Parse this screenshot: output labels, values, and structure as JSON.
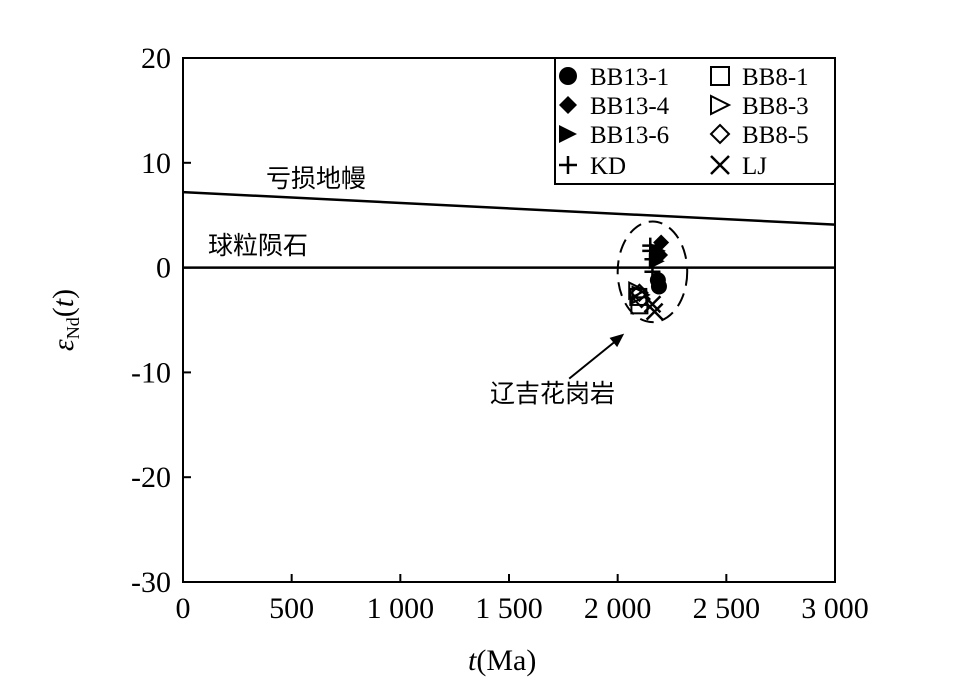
{
  "chart_data": {
    "type": "scatter",
    "xlabel": "t(Ma)",
    "ylabel": "εNd(t)",
    "xlim": [
      0,
      3000
    ],
    "ylim": [
      -30,
      20
    ],
    "x_ticks": [
      0,
      500,
      1000,
      1500,
      2000,
      2500,
      3000
    ],
    "x_tick_labels": [
      "0",
      "500",
      "1 000",
      "1 500",
      "2 000",
      "2 500",
      "3 000"
    ],
    "y_ticks": [
      -30,
      -20,
      -10,
      0,
      10,
      20
    ],
    "y_tick_labels": [
      "-30",
      "-20",
      "-10",
      "0",
      "10",
      "20"
    ],
    "grid": false,
    "legend_position": "top-right",
    "reference_lines": [
      {
        "label": "亏损地幔",
        "x": [
          0,
          3000
        ],
        "y": [
          7.2,
          4.1
        ]
      },
      {
        "label": "球粒陨石",
        "x": [
          0,
          3000
        ],
        "y": [
          0,
          0
        ]
      }
    ],
    "series": [
      {
        "name": "BB13-1",
        "marker": "circle-filled",
        "points": [
          [
            2190,
            -1.8
          ],
          [
            2185,
            -1.2
          ]
        ]
      },
      {
        "name": "BB13-4",
        "marker": "diamond-filled",
        "points": [
          [
            2200,
            2.4
          ],
          [
            2195,
            1.2
          ]
        ]
      },
      {
        "name": "BB13-6",
        "marker": "triangle-right-filled",
        "points": [
          [
            2185,
            1.6
          ],
          [
            2180,
            0.6
          ]
        ]
      },
      {
        "name": "KD",
        "marker": "plus",
        "points": [
          [
            2150,
            1.6
          ],
          [
            2160,
            0.8
          ],
          [
            2160,
            -0.4
          ],
          [
            2150,
            2.1
          ]
        ]
      },
      {
        "name": "BB8-1",
        "marker": "square-open",
        "points": [
          [
            2095,
            -2.8
          ],
          [
            2100,
            -3.6
          ]
        ]
      },
      {
        "name": "BB8-3",
        "marker": "triangle-right-open",
        "points": [
          [
            2090,
            -2.2
          ],
          [
            2105,
            -2.6
          ]
        ]
      },
      {
        "name": "BB8-5",
        "marker": "diamond-open",
        "points": [
          [
            2100,
            -2.4
          ],
          [
            2110,
            -3.0
          ]
        ]
      },
      {
        "name": "LJ",
        "marker": "x",
        "points": [
          [
            2170,
            -4.2
          ],
          [
            2160,
            -3.5
          ]
        ]
      }
    ],
    "annotation": {
      "text": "辽吉花岗岩",
      "target_x": 2030,
      "target_y": -6.3
    },
    "ellipse": {
      "cx": 2160,
      "cy": -0.4,
      "rx": 160,
      "ry": 4.8
    }
  }
}
